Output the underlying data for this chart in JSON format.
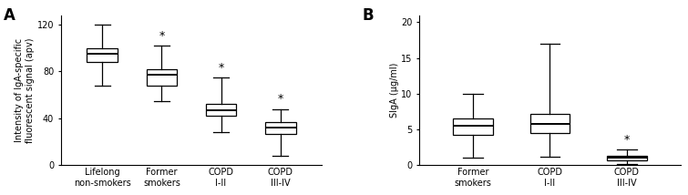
{
  "panel_A": {
    "title": "A",
    "ylabel": "Intensity of IgA-specific\nfluorescent signal (apv)",
    "ylim": [
      0,
      128
    ],
    "yticks": [
      0,
      40,
      80,
      120
    ],
    "categories": [
      "Lifelong\nnon-smokers",
      "Former\nsmokers",
      "COPD\nI-II",
      "COPD\nIII-IV"
    ],
    "boxes": [
      {
        "whislo": 68,
        "q1": 88,
        "med": 95,
        "q3": 100,
        "whishi": 120
      },
      {
        "whislo": 55,
        "q1": 68,
        "med": 77,
        "q3": 82,
        "whishi": 102
      },
      {
        "whislo": 28,
        "q1": 42,
        "med": 47,
        "q3": 52,
        "whishi": 75
      },
      {
        "whislo": 8,
        "q1": 27,
        "med": 32,
        "q3": 37,
        "whishi": 48
      }
    ],
    "sig": [
      false,
      true,
      true,
      true
    ]
  },
  "panel_B": {
    "title": "B",
    "ylabel": "SIgA (μg/ml)",
    "ylim": [
      0,
      21
    ],
    "yticks": [
      0,
      5,
      10,
      15,
      20
    ],
    "categories": [
      "Former\nsmokers",
      "COPD\nI-II",
      "COPD\nIII-IV"
    ],
    "boxes": [
      {
        "whislo": 1.0,
        "q1": 4.2,
        "med": 5.5,
        "q3": 6.5,
        "whishi": 10.0
      },
      {
        "whislo": 1.2,
        "q1": 4.5,
        "med": 5.8,
        "q3": 7.2,
        "whishi": 17.0
      },
      {
        "whislo": 0.2,
        "q1": 0.7,
        "med": 1.0,
        "q3": 1.3,
        "whishi": 2.2
      }
    ],
    "sig": [
      false,
      false,
      true
    ]
  },
  "box_color": "#ffffff",
  "box_edgecolor": "#000000",
  "median_color": "#000000",
  "whisker_color": "#000000",
  "cap_color": "#000000",
  "linewidth": 0.9,
  "box_width": 0.52,
  "background_color": "#ffffff",
  "tick_fontsize": 7,
  "label_fontsize": 7,
  "xlabel_fontsize": 7,
  "sig_fontsize": 9,
  "panel_label_fontsize": 12
}
